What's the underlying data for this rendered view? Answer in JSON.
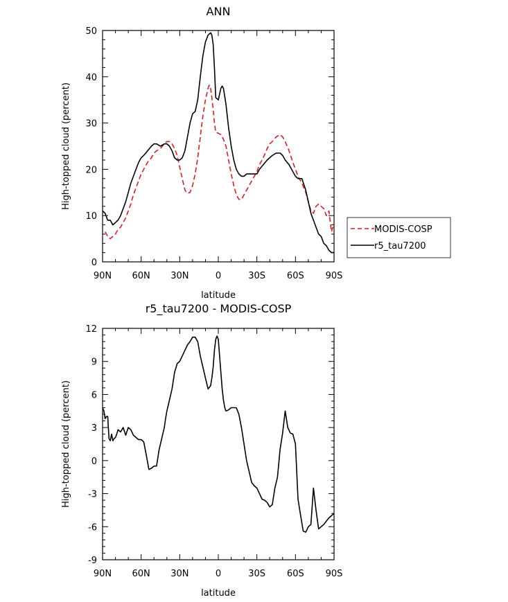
{
  "chart_data": [
    {
      "type": "line",
      "title": "ANN",
      "xlabel": "latitude",
      "ylabel": "High-topped cloud (percent)",
      "xlim": [
        -90,
        90
      ],
      "ylim": [
        0,
        50
      ],
      "x_ticks": [
        -90,
        -60,
        -30,
        0,
        30,
        60,
        90
      ],
      "x_tick_labels": [
        "90N",
        "60N",
        "30N",
        "0",
        "30S",
        "60S",
        "90S"
      ],
      "y_ticks": [
        0,
        10,
        20,
        30,
        40,
        50
      ],
      "y_tick_labels": [
        "0",
        "10",
        "20",
        "30",
        "40",
        "50"
      ],
      "legend": {
        "placement": "right",
        "entries": [
          "MODIS-COSP",
          "r5_tau7200"
        ]
      },
      "series": [
        {
          "name": "MODIS-COSP",
          "color": "#e41a1c",
          "dash": "dashed",
          "x": [
            -88,
            -86,
            -84,
            -82,
            -80,
            -78,
            -76,
            -74,
            -72,
            -70,
            -68,
            -66,
            -64,
            -62,
            -60,
            -58,
            -55,
            -52,
            -50,
            -48,
            -45,
            -42,
            -40,
            -38,
            -36,
            -34,
            -32,
            -30,
            -28,
            -26,
            -24,
            -22,
            -20,
            -18,
            -16,
            -14,
            -12,
            -10,
            -8,
            -7,
            -6,
            -5,
            -4,
            -3,
            -2,
            0,
            2,
            4,
            6,
            8,
            10,
            12,
            14,
            16,
            18,
            20,
            22,
            24,
            26,
            28,
            30,
            32,
            35,
            38,
            40,
            42,
            45,
            48,
            50,
            52,
            55,
            58,
            60,
            62,
            65,
            68,
            70,
            72,
            74,
            76,
            78,
            80,
            82,
            84,
            86,
            88,
            90
          ],
          "y": [
            6.5,
            5.5,
            5.0,
            5.5,
            6.0,
            7.0,
            7.5,
            8.5,
            9.5,
            11.0,
            12.5,
            14.5,
            16.0,
            17.5,
            19.0,
            20.0,
            21.5,
            22.5,
            23.5,
            24.0,
            24.5,
            25.5,
            26.0,
            26.0,
            25.5,
            24.5,
            23.0,
            20.5,
            18.0,
            15.5,
            14.8,
            15.0,
            16.5,
            19.0,
            22.5,
            27.0,
            31.5,
            35.0,
            37.5,
            38.2,
            37.5,
            35.5,
            33.0,
            30.0,
            28.0,
            27.8,
            27.5,
            26.5,
            25.0,
            22.0,
            19.0,
            16.5,
            14.5,
            13.5,
            13.5,
            14.5,
            15.5,
            16.5,
            17.5,
            18.5,
            19.5,
            21.0,
            22.5,
            24.5,
            25.5,
            26.0,
            27.0,
            27.5,
            27.0,
            26.0,
            24.0,
            21.5,
            20.0,
            18.5,
            17.0,
            15.0,
            13.0,
            11.0,
            10.5,
            12.0,
            12.5,
            12.0,
            11.5,
            10.0,
            11.0,
            6.5,
            8.5
          ]
        },
        {
          "name": "r5_tau7200",
          "color": "#000000",
          "dash": "solid",
          "x": [
            -90,
            -88,
            -86,
            -84,
            -82,
            -80,
            -78,
            -76,
            -74,
            -72,
            -70,
            -68,
            -66,
            -64,
            -62,
            -60,
            -58,
            -55,
            -52,
            -50,
            -48,
            -45,
            -42,
            -40,
            -38,
            -36,
            -34,
            -32,
            -30,
            -28,
            -26,
            -24,
            -22,
            -20,
            -18,
            -16,
            -14,
            -12,
            -10,
            -8,
            -6,
            -5,
            -4,
            -3,
            -2,
            0,
            2,
            3,
            4,
            6,
            8,
            10,
            12,
            14,
            16,
            18,
            20,
            22,
            24,
            26,
            28,
            30,
            32,
            35,
            38,
            40,
            42,
            45,
            48,
            50,
            52,
            55,
            58,
            60,
            62,
            65,
            68,
            70,
            72,
            74,
            76,
            78,
            80,
            82,
            84,
            86,
            88,
            90
          ],
          "y": [
            11.0,
            10.5,
            9.0,
            9.0,
            8.0,
            8.5,
            9.0,
            10.0,
            11.5,
            13.0,
            15.0,
            17.0,
            18.5,
            20.0,
            21.5,
            22.5,
            23.0,
            24.0,
            25.0,
            25.5,
            25.5,
            25.0,
            25.5,
            25.5,
            25.0,
            24.0,
            22.5,
            22.0,
            22.0,
            22.5,
            24.0,
            27.0,
            30.0,
            32.0,
            32.5,
            35.0,
            40.0,
            44.5,
            47.5,
            49.0,
            49.5,
            49.0,
            47.0,
            42.0,
            35.5,
            35.0,
            37.5,
            38.0,
            37.5,
            34.0,
            29.0,
            25.0,
            22.0,
            20.0,
            19.0,
            18.5,
            18.5,
            19.0,
            19.0,
            19.0,
            19.0,
            19.0,
            20.0,
            21.0,
            22.0,
            22.5,
            23.0,
            23.5,
            23.5,
            23.0,
            22.0,
            21.0,
            19.5,
            18.5,
            18.0,
            18.0,
            15.5,
            13.0,
            10.5,
            9.0,
            7.5,
            6.0,
            5.5,
            4.0,
            3.5,
            2.5,
            2.0,
            2.0
          ]
        }
      ]
    },
    {
      "type": "line",
      "title": "r5_tau7200 - MODIS-COSP",
      "xlabel": "latitude",
      "ylabel": "High-topped cloud (percent)",
      "xlim": [
        -90,
        90
      ],
      "ylim": [
        -9,
        12
      ],
      "x_ticks": [
        -90,
        -60,
        -30,
        0,
        30,
        60,
        90
      ],
      "x_tick_labels": [
        "90N",
        "60N",
        "30N",
        "0",
        "30S",
        "60S",
        "90S"
      ],
      "y_ticks": [
        -9,
        -6,
        -3,
        0,
        3,
        6,
        9,
        12
      ],
      "y_tick_labels": [
        "-9",
        "-6",
        "-3",
        "0",
        "3",
        "6",
        "9",
        "12"
      ],
      "series": [
        {
          "color": "#000000",
          "dash": "solid",
          "x": [
            -90,
            -89,
            -88,
            -87,
            -86,
            -85,
            -84,
            -83,
            -82,
            -81,
            -80,
            -79,
            -78,
            -76,
            -74,
            -72,
            -70,
            -68,
            -66,
            -65,
            -64,
            -62,
            -60,
            -58,
            -56,
            -54,
            -52,
            -50,
            -48,
            -46,
            -44,
            -43,
            -42,
            -41,
            -40,
            -38,
            -36,
            -34,
            -32,
            -30,
            -28,
            -26,
            -24,
            -22,
            -20,
            -18,
            -16,
            -14,
            -12,
            -10,
            -8,
            -6,
            -5,
            -4,
            -3,
            -2,
            -1,
            0,
            2,
            3,
            4,
            5,
            6,
            8,
            10,
            12,
            14,
            16,
            18,
            20,
            22,
            24,
            26,
            28,
            30,
            32,
            34,
            36,
            38,
            40,
            42,
            44,
            46,
            48,
            50,
            52,
            54,
            56,
            58,
            60,
            62,
            64,
            66,
            68,
            70,
            72,
            74,
            76,
            78,
            80,
            82,
            84,
            86,
            88,
            90
          ],
          "y": [
            4.8,
            4.5,
            3.8,
            4.0,
            4.0,
            2.0,
            1.8,
            2.4,
            1.8,
            2.0,
            2.1,
            2.4,
            2.8,
            2.6,
            3.0,
            2.3,
            3.0,
            2.8,
            2.3,
            2.2,
            2.1,
            1.9,
            1.9,
            1.7,
            0.5,
            -0.8,
            -0.7,
            -0.5,
            -0.5,
            1.0,
            2.0,
            2.5,
            3.0,
            3.8,
            4.5,
            5.5,
            6.5,
            8.0,
            8.8,
            9.0,
            9.5,
            10.0,
            10.5,
            10.8,
            11.2,
            11.2,
            10.8,
            9.5,
            8.5,
            7.5,
            6.5,
            6.8,
            7.5,
            8.5,
            10.0,
            11.0,
            11.3,
            11.0,
            8.0,
            6.5,
            5.5,
            4.8,
            4.5,
            4.6,
            4.8,
            4.8,
            4.8,
            4.2,
            3.0,
            1.5,
            0.0,
            -1.0,
            -2.0,
            -2.3,
            -2.5,
            -3.0,
            -3.5,
            -3.6,
            -3.8,
            -4.2,
            -4.0,
            -2.5,
            -1.5,
            1.0,
            2.5,
            4.5,
            3.0,
            2.5,
            2.4,
            1.5,
            -3.5,
            -5.0,
            -6.4,
            -6.5,
            -6.0,
            -5.8,
            -2.5,
            -4.5,
            -6.2,
            -6.0,
            -5.8,
            -5.5,
            -5.2,
            -5.0,
            -4.8
          ]
        }
      ]
    }
  ]
}
